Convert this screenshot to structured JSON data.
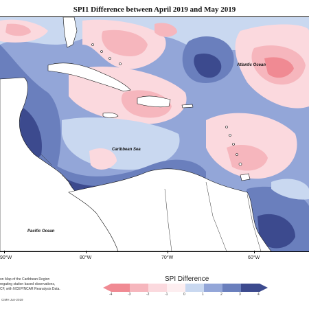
{
  "title": "SPI1 Difference between April 2019 and May 2019",
  "labels": {
    "atlantic": "Atlantic Ocean",
    "caribbean": "Caribbean Sea",
    "pacific": "Pacific Ocean"
  },
  "longitudes": [
    "90°W",
    "80°W",
    "70°W",
    "60°W"
  ],
  "footnote": {
    "line1": "on Map of the Caribbean Region",
    "line2": "regating station based observations,",
    "line3": "CF, with NCEP/NCAR Reanalysis Data."
  },
  "copyright": "CIMH Jun-2019",
  "legend": {
    "title": "SPI Difference",
    "ticks": [
      "-4",
      "-3",
      "-2",
      "-1",
      "0",
      "1",
      "2",
      "3",
      "4"
    ],
    "colors": [
      "#f08a93",
      "#f6b6bd",
      "#fbd9de",
      "#fdeef0",
      "#e7f0f2",
      "#c9d8f0",
      "#93a6d8",
      "#6a7fbd",
      "#3c4a8e"
    ]
  },
  "palette": {
    "land": "#ffffff",
    "dark_blue": "#3c4a8e",
    "mid_blue": "#6a7fbd",
    "light_blue": "#93a6d8",
    "pale_blue": "#c9d8f0",
    "neutral": "#e7f0f2",
    "pale_pink": "#fbd9de",
    "pink": "#f6b6bd",
    "red": "#f08a93"
  }
}
